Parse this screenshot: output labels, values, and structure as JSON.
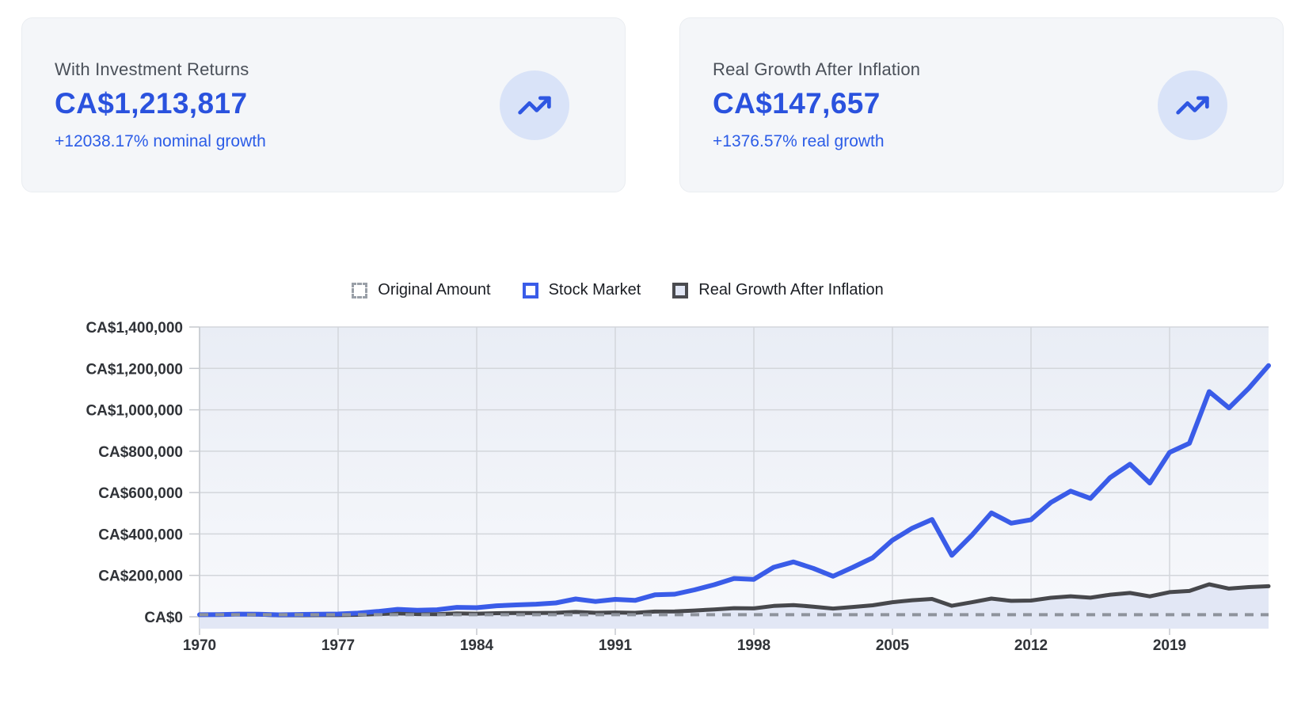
{
  "cards": [
    {
      "title": "With Investment Returns",
      "value": "CA$1,213,817",
      "growth": "+12038.17% nominal growth",
      "icon": "trending-up-icon"
    },
    {
      "title": "Real Growth After Inflation",
      "value": "CA$147,657",
      "growth": "+1376.57% real growth",
      "icon": "trending-up-icon"
    }
  ],
  "colors": {
    "accent_blue": "#3A5CE8",
    "stat_value_blue": "#2A52DE",
    "stat_growth_blue": "#2B5CE7",
    "real_line_gray": "#47484C",
    "real_fill_lavender": "#E2E7F5",
    "dashed_gray": "#8E939C",
    "icon_circle_bg": "#D9E3F8",
    "card_bg": "#F4F6F9",
    "grid_line": "#D3D6DB"
  },
  "chart_data": {
    "type": "line",
    "title": "",
    "xlabel": "",
    "ylabel": "",
    "ylim": [
      0,
      1400000
    ],
    "grid": true,
    "legend_position": "top",
    "y_tick_values": [
      0,
      200000,
      400000,
      600000,
      800000,
      1000000,
      1200000,
      1400000
    ],
    "y_tick_labels": [
      "CA$0",
      "CA$200,000",
      "CA$400,000",
      "CA$600,000",
      "CA$800,000",
      "CA$1,000,000",
      "CA$1,200,000",
      "CA$1,400,000"
    ],
    "x_tick_labels": [
      "1970",
      "1977",
      "1984",
      "1991",
      "1998",
      "2005",
      "2012",
      "2019"
    ],
    "x": [
      1970,
      1971,
      1972,
      1973,
      1974,
      1975,
      1976,
      1977,
      1978,
      1979,
      1980,
      1981,
      1982,
      1983,
      1984,
      1985,
      1986,
      1987,
      1988,
      1989,
      1990,
      1991,
      1992,
      1993,
      1994,
      1995,
      1996,
      1997,
      1998,
      1999,
      2000,
      2001,
      2002,
      2003,
      2004,
      2005,
      2006,
      2007,
      2008,
      2009,
      2010,
      2011,
      2012,
      2013,
      2014,
      2015,
      2016,
      2017,
      2018,
      2019,
      2020,
      2021,
      2022,
      2023,
      2024
    ],
    "series": [
      {
        "name": "Original Amount",
        "type": "dashed-line",
        "color": "#8E939C",
        "constant": 10000
      },
      {
        "name": "Stock Market",
        "type": "line",
        "color": "#3A5CE8",
        "values": [
          10000,
          10900,
          13000,
          12300,
          9400,
          11000,
          12200,
          13500,
          17500,
          25500,
          36000,
          31500,
          34000,
          45500,
          44000,
          53000,
          57500,
          61000,
          67000,
          86000,
          74000,
          84000,
          79000,
          106000,
          109000,
          130000,
          155000,
          185000,
          181000,
          239000,
          265000,
          234000,
          196000,
          239000,
          285000,
          370000,
          428000,
          470000,
          297000,
          393000,
          502000,
          452000,
          469000,
          552000,
          607000,
          572000,
          673000,
          737000,
          646000,
          794000,
          838000,
          1088000,
          1009000,
          1104000,
          1213817
        ]
      },
      {
        "name": "Real Growth After Inflation",
        "type": "area-line",
        "color": "#47484C",
        "fill": "#E2E7F5",
        "values": [
          10000,
          10600,
          12000,
          10600,
          7300,
          7700,
          8000,
          8100,
          9700,
          12900,
          16600,
          12900,
          12600,
          15900,
          14800,
          17100,
          17800,
          18100,
          19100,
          23400,
          19200,
          20600,
          19100,
          25200,
          25800,
          30200,
          35500,
          41700,
          40400,
          52400,
          56600,
          48800,
          39900,
          47400,
          55400,
          70500,
          80000,
          85900,
          53000,
          70100,
          87900,
          76900,
          78600,
          91700,
          98900,
          92100,
          106800,
          115200,
          98800,
          119000,
          124700,
          156800,
          136200,
          143400,
          147657
        ]
      }
    ]
  }
}
